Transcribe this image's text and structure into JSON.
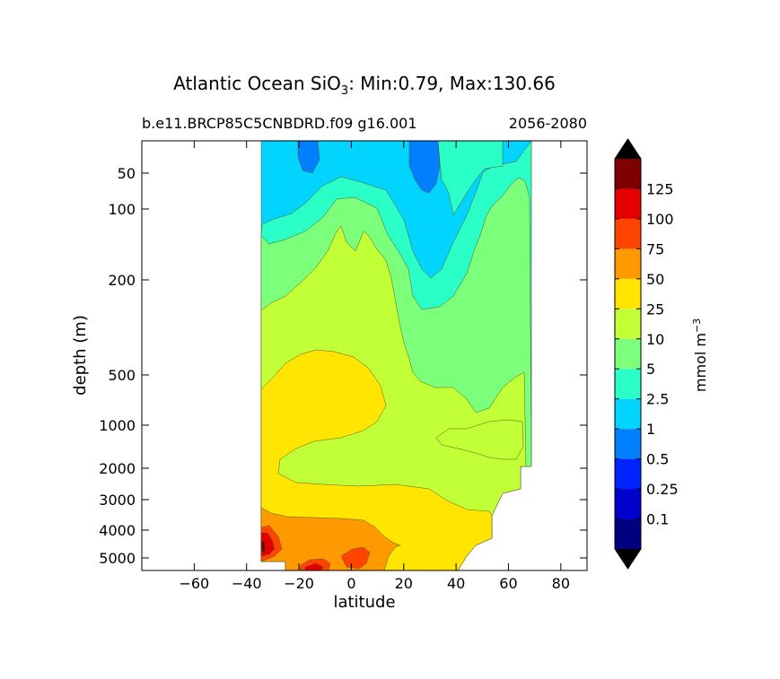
{
  "chart_data": {
    "type": "filled-contour",
    "title": {
      "main": "Atlantic Ocean SiO",
      "subscript": "3",
      "rest": ": Min:0.79, Max:130.66"
    },
    "subtitle_left": "b.e11.BRCP85C5CNBDRD.f09 g16.001",
    "subtitle_right": "2056-2080",
    "xlabel": "latitude",
    "ylabel": "depth (m)",
    "xlim": [
      -80,
      90
    ],
    "xticks": [
      -60,
      -40,
      -20,
      0,
      20,
      40,
      60,
      80
    ],
    "xtick_labels": [
      "−60",
      "−40",
      "−20",
      "0",
      "20",
      "40",
      "60",
      "80"
    ],
    "yscale": "nonlinear (compressed with depth), inverted",
    "ylim": [
      5500,
      0
    ],
    "yticks": [
      50,
      100,
      200,
      500,
      1000,
      2000,
      3000,
      4000,
      5000
    ],
    "ytick_labels": [
      "50",
      "100",
      "200",
      "500",
      "1000",
      "2000",
      "3000",
      "4000",
      "5000"
    ],
    "colorbar": {
      "label": "mmol m",
      "label_superscript": "−3",
      "levels": [
        "0.1",
        "0.25",
        "0.5",
        "1",
        "2.5",
        "5",
        "10",
        "25",
        "50",
        "75",
        "100",
        "125"
      ],
      "colors": [
        "#000080",
        "#0000cd",
        "#0022ff",
        "#007fff",
        "#00d4ff",
        "#29ffc6",
        "#7cff7a",
        "#c1ff36",
        "#ffe500",
        "#ff9900",
        "#ff4400",
        "#e40000",
        "#7f0000"
      ],
      "extend": "both"
    },
    "fields": [
      {
        "level": "1",
        "color": "#00d4ff"
      },
      {
        "level": "0.5",
        "color": "#007fff"
      },
      {
        "level": "2.5",
        "color": "#29ffc6"
      },
      {
        "level": "5",
        "color": "#7cff7a"
      },
      {
        "level": "10",
        "color": "#c1ff36"
      },
      {
        "level": "25",
        "color": "#ffe500"
      },
      {
        "level": "50",
        "color": "#ff9900"
      },
      {
        "level": "75",
        "color": "#ff4400"
      },
      {
        "level": "100",
        "color": "#e40000"
      },
      {
        "level": "125",
        "color": "#7f0000"
      }
    ]
  }
}
